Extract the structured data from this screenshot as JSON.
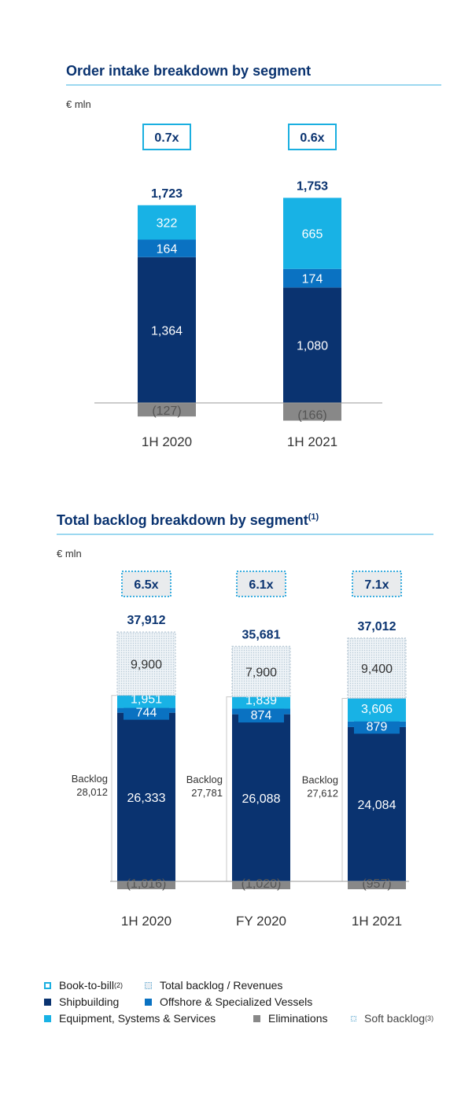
{
  "chart_data": [
    {
      "type": "bar",
      "title": "Order intake breakdown by segment",
      "unit": "€ mln",
      "categories": [
        "1H 2020",
        "1H 2021"
      ],
      "ratio_labels": [
        "0.7x",
        "0.6x"
      ],
      "totals": [
        "1,723",
        "1,753"
      ],
      "series": [
        {
          "name": "Shipbuilding",
          "values": [
            1364,
            1080
          ],
          "labels": [
            "1,364",
            "1,080"
          ],
          "color": "#0a3370"
        },
        {
          "name": "Offshore & Specialized Vessels",
          "values": [
            164,
            174
          ],
          "labels": [
            "164",
            "174"
          ],
          "color": "#0a72c2"
        },
        {
          "name": "Equipment, Systems & Services",
          "values": [
            322,
            665
          ],
          "labels": [
            "322",
            "665"
          ],
          "color": "#18b2e5"
        },
        {
          "name": "Eliminations",
          "values": [
            -127,
            -166
          ],
          "labels": [
            "(127)",
            "(166)"
          ],
          "color": "#888888"
        }
      ]
    },
    {
      "type": "bar",
      "title": "Total backlog breakdown by segment",
      "title_sup": "(1)",
      "unit": "€ mln",
      "categories": [
        "1H 2020",
        "FY 2020",
        "1H 2021"
      ],
      "ratio_labels": [
        "6.5x",
        "6.1x",
        "7.1x"
      ],
      "totals": [
        "37,912",
        "35,681",
        "37,012"
      ],
      "backlog_label": "Backlog",
      "backlog_values": [
        "28,012",
        "27,781",
        "27,612"
      ],
      "series": [
        {
          "name": "Shipbuilding",
          "values": [
            26333,
            26088,
            24084
          ],
          "labels": [
            "26,333",
            "26,088",
            "24,084"
          ],
          "color": "#0a3370"
        },
        {
          "name": "Offshore & Specialized Vessels",
          "values": [
            744,
            874,
            879
          ],
          "labels": [
            "744",
            "874",
            "879"
          ],
          "color": "#0a72c2"
        },
        {
          "name": "Equipment, Systems & Services",
          "values": [
            1951,
            1839,
            3606
          ],
          "labels": [
            "1,951",
            "1,839",
            "3,606"
          ],
          "color": "#18b2e5"
        },
        {
          "name": "Soft backlog",
          "values": [
            9900,
            7900,
            9400
          ],
          "labels": [
            "9,900",
            "7,900",
            "9,400"
          ],
          "color": "#e6eef4"
        },
        {
          "name": "Eliminations",
          "values": [
            -1016,
            -1020,
            -957
          ],
          "labels": [
            "(1,016)",
            "(1,020)",
            "(957)"
          ],
          "color": "#888888"
        }
      ]
    }
  ],
  "legend": {
    "book_to_bill": "Book-to-bill",
    "book_to_bill_sup": "(2)",
    "total_backlog_revenues": "Total backlog / Revenues",
    "shipbuilding": "Shipbuilding",
    "offshore": "Offshore & Specialized Vessels",
    "equipment": "Equipment, Systems & Services",
    "eliminations": "Eliminations",
    "soft_backlog": "Soft backlog",
    "soft_backlog_sup": "(3)"
  }
}
